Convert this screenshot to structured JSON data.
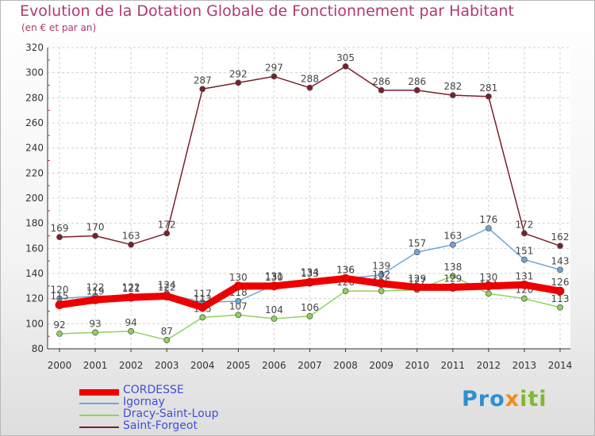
{
  "title": "Evolution de la Dotation Globale de Fonctionnement par Habitant",
  "subtitle": "(en € et par an)",
  "brand": {
    "p1": "Pro",
    "p2": "x",
    "p3": "iti"
  },
  "chart_data": {
    "type": "line",
    "title": "Evolution de la Dotation Globale de Fonctionnement par Habitant",
    "subtitle": "(en € et par an)",
    "xlabel": "",
    "ylabel": "",
    "ylim": [
      80,
      320
    ],
    "yticks": [
      80,
      100,
      120,
      140,
      160,
      180,
      200,
      220,
      240,
      260,
      280,
      300,
      320
    ],
    "categories": [
      "2000",
      "2001",
      "2002",
      "2003",
      "2004",
      "2005",
      "2006",
      "2007",
      "2008",
      "2009",
      "2010",
      "2011",
      "2012",
      "2013",
      "2014"
    ],
    "legend_position": "bottom-left",
    "series": [
      {
        "name": "Saint-Forgeot",
        "color": "#7a1f2b",
        "values": [
          169,
          170,
          163,
          172,
          287,
          292,
          297,
          288,
          305,
          286,
          286,
          282,
          281,
          172,
          162
        ],
        "labels": [
          "169",
          "170",
          "163",
          "172",
          "287",
          "292",
          "297",
          "288",
          "305",
          "286",
          "286",
          "282",
          "281",
          "172",
          "162"
        ]
      },
      {
        "name": "Dracy-Saint-Loup",
        "color": "#8fd35a",
        "values": [
          92,
          93,
          94,
          87,
          105,
          107,
          104,
          106,
          126,
          126,
          127,
          138,
          124,
          120,
          113
        ],
        "labels": [
          "92",
          "93",
          "94",
          "87",
          "105",
          "107",
          "104",
          "106",
          "126",
          "126",
          "127",
          "138",
          "124",
          "120",
          "113"
        ]
      },
      {
        "name": "Igornay",
        "color": "#6fa6d8",
        "values": [
          120,
          122,
          122,
          124,
          117,
          118,
          131,
          134,
          136,
          139,
          157,
          163,
          176,
          151,
          143
        ],
        "labels": [
          "120",
          "122",
          "122",
          "124",
          "117",
          "118",
          "131",
          "134",
          "136",
          "139",
          "157",
          "163",
          "176",
          "151",
          "143"
        ]
      },
      {
        "name": "CORDESSE",
        "color": "#ee0000",
        "values": [
          115,
          119,
          121,
          122,
          113,
          130,
          130,
          133,
          136,
          132,
          129,
          129,
          130,
          131,
          126
        ],
        "labels": [
          "115",
          "119",
          "121",
          "122",
          "113",
          "130",
          "130",
          "133",
          "136",
          "132",
          "129",
          "129",
          "130",
          "131",
          "126"
        ]
      }
    ]
  }
}
